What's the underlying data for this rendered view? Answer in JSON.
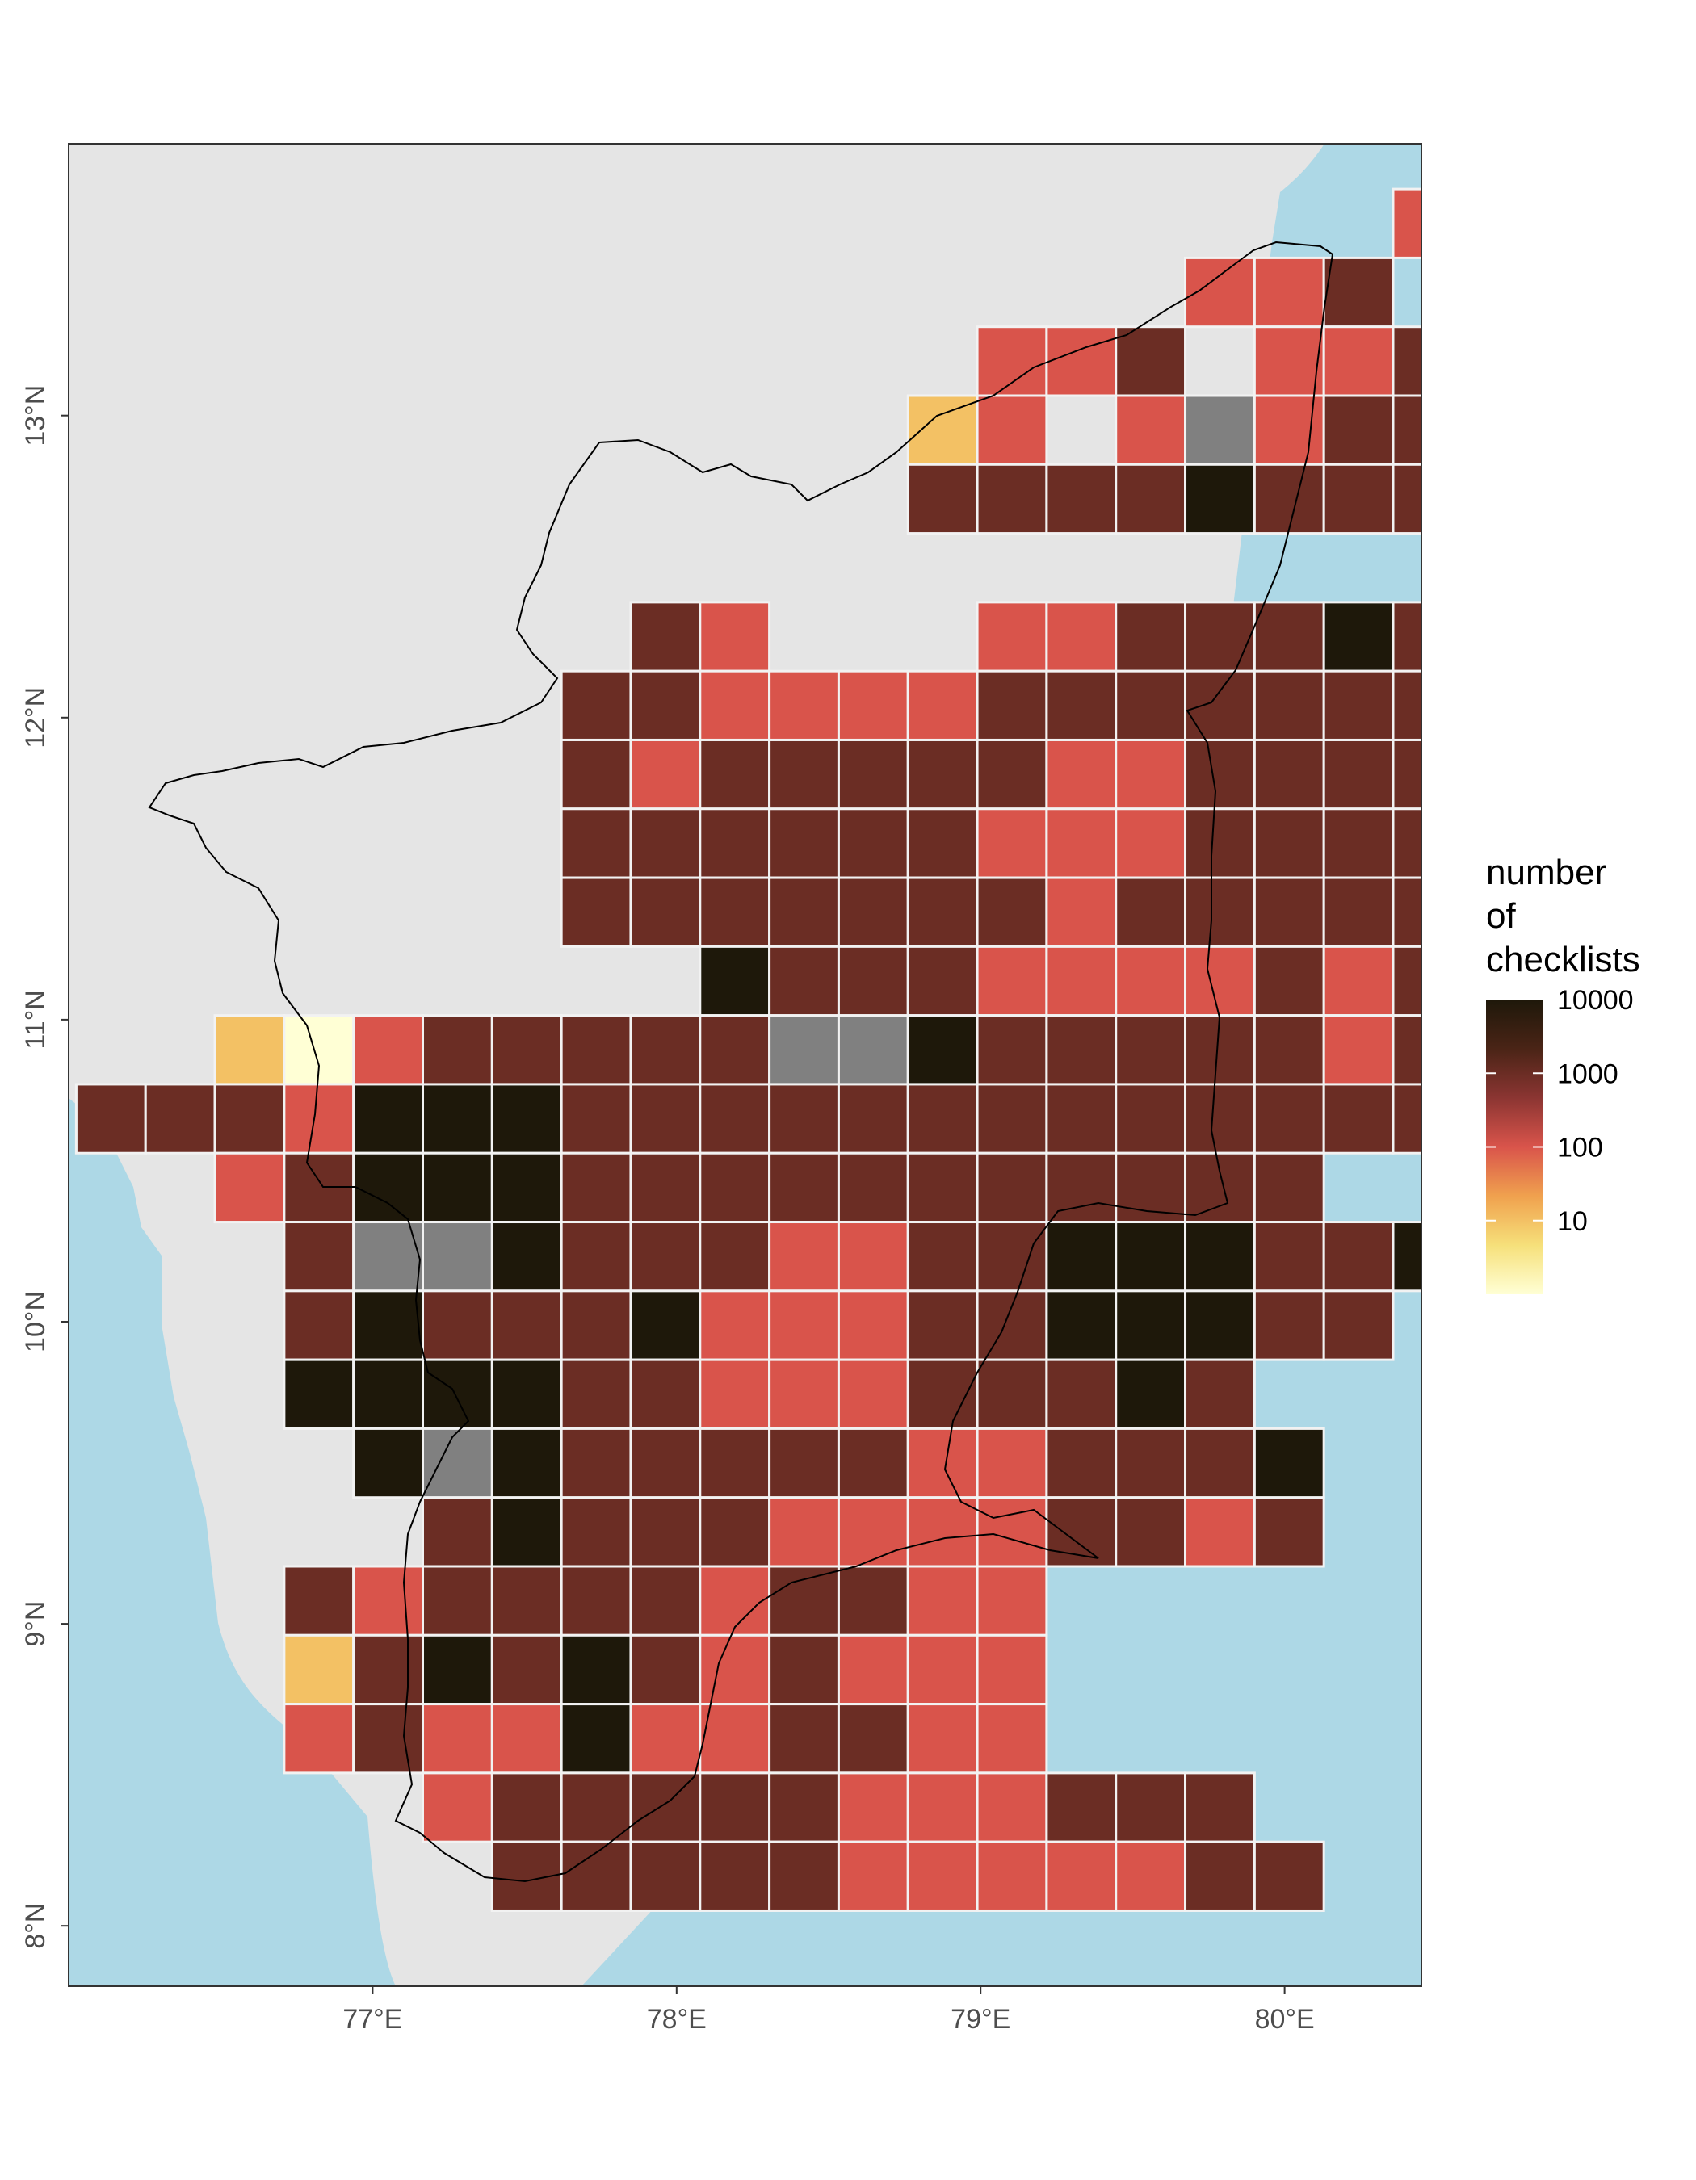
{
  "colors": {
    "land": "#E5E5E5",
    "sea": "#ADD8E6",
    "na": "#808080",
    "cell_border": "#F2F2F2",
    "outline": "#000000",
    "ramp": [
      "#FFFFD5",
      "#F6E07A",
      "#F0A14E",
      "#D9544B",
      "#8B3532",
      "#4A2416",
      "#1E180A"
    ]
  },
  "axes": {
    "x_ticks": [
      {
        "value": 77,
        "label": "77°E"
      },
      {
        "value": 78,
        "label": "78°E"
      },
      {
        "value": 79,
        "label": "79°E"
      },
      {
        "value": 80,
        "label": "80°E"
      }
    ],
    "y_ticks": [
      {
        "value": 8,
        "label": "8°N"
      },
      {
        "value": 9,
        "label": "9°N"
      },
      {
        "value": 10,
        "label": "10°N"
      },
      {
        "value": 11,
        "label": "11°N"
      },
      {
        "value": 12,
        "label": "12°N"
      },
      {
        "value": 13,
        "label": "13°N"
      }
    ],
    "xlim": [
      76.0,
      80.45
    ],
    "ylim": [
      7.8,
      13.9
    ]
  },
  "legend": {
    "title_lines": [
      "number",
      "of",
      "checklists"
    ],
    "breaks": [
      {
        "value": 10000,
        "label": "10000"
      },
      {
        "value": 1000,
        "label": "1000"
      },
      {
        "value": 100,
        "label": "100"
      },
      {
        "value": 10,
        "label": "10"
      }
    ],
    "range_log10": [
      0,
      4
    ]
  },
  "chart_data": {
    "type": "heatmap",
    "grid": {
      "lon0": 76.025,
      "lat0": 8.05,
      "cell_deg": 0.228,
      "cols": 19,
      "rows": 26
    },
    "na_code": -1,
    "row_order": "north_to_south",
    "values_log10": [
      "......................",
      "...................23.",
      "................223.32.",
      ".............223.22333.",
      "............12.2-233333",
      "............333343333333-",
      ".....................32.",
      "........32...2233343344433.",
      ".......332222333333334433..",
      ".......32333332233333222.333",
      ".......3333332223333223333",
      ".......33333332333332233.",
      ".........4333222232334.",
      "..10233333--4333332333.",
      "3332444333333333333333",
      "..2344433333333333",
      "...3--433322334443343",
      "...3433342223344433.",
      "...44443322233343.",
      "....4-433333223334.",
      ".....3433322223323",
      "...32333323322.",
      "...13434323222.",
      "...23224223322.",
      ".....233333222333.",
      "......333332222233"
    ]
  }
}
